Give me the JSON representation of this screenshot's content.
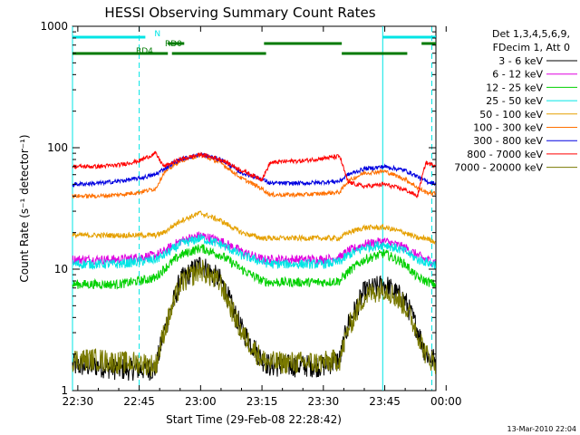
{
  "chart_data": {
    "type": "line",
    "title": "HESSI Observing Summary Count Rates",
    "xlabel": "Start Time (29-Feb-08 22:28:42)",
    "ylabel": "Count Rate (s⁻¹ detector⁻¹)",
    "yscale": "log",
    "ylim": [
      1,
      1000
    ],
    "xlim_min": [
      -1.3,
      87.5
    ],
    "x_ticks": [
      {
        "min": 0,
        "label": "22:30"
      },
      {
        "min": 15,
        "label": "22:45"
      },
      {
        "min": 30,
        "label": "23:00"
      },
      {
        "min": 45,
        "label": "23:15"
      },
      {
        "min": 60,
        "label": "23:30"
      },
      {
        "min": 75,
        "label": "23:45"
      },
      {
        "min": 90,
        "label": "00:00"
      }
    ],
    "y_ticks": [
      {
        "value": 1,
        "label": "1"
      },
      {
        "value": 10,
        "label": "10"
      },
      {
        "value": 100,
        "label": "100"
      },
      {
        "value": 1000,
        "label": "1000"
      }
    ],
    "legend": {
      "placement": "right",
      "header": [
        "Det 1,3,4,5,6,9,",
        "FDecim 1, Att 0"
      ]
    },
    "flags": [
      {
        "label": "N",
        "color": "#00e5e5",
        "segments": [
          [
            -1.3,
            16.5
          ],
          [
            74.5,
            87.5
          ]
        ]
      },
      {
        "label": "RD0",
        "color": "#007a00",
        "segments": [
          [
            22,
            26
          ],
          [
            45.5,
            64.5
          ],
          [
            84,
            87.5
          ]
        ]
      },
      {
        "label": "RD4",
        "color": "#007a00",
        "segments": [
          [
            -1.3,
            22
          ],
          [
            23,
            46
          ],
          [
            64.5,
            80.5
          ]
        ]
      }
    ],
    "vlines": [
      {
        "min": -1.3,
        "style": "solid"
      },
      {
        "min": 15,
        "style": "dashed"
      },
      {
        "min": 74.5,
        "style": "solid"
      },
      {
        "min": 86.5,
        "style": "dashed"
      }
    ],
    "minutes": [
      -1,
      5,
      10,
      15,
      19,
      21,
      25,
      30,
      35,
      40,
      45,
      47,
      50,
      55,
      60,
      64,
      66,
      70,
      75,
      80,
      83,
      85,
      87
    ],
    "series": [
      {
        "name": "3 - 6 keV",
        "color": "#000000",
        "values": [
          1.6,
          1.6,
          1.5,
          1.5,
          1.5,
          3,
          8,
          11,
          8,
          3.2,
          1.8,
          1.6,
          1.6,
          1.6,
          1.6,
          1.8,
          3.5,
          6.5,
          7.5,
          5.5,
          3.2,
          2,
          1.8
        ]
      },
      {
        "name": "6 - 12 keV",
        "color": "#e000e0",
        "values": [
          12,
          12,
          12,
          12.5,
          13,
          14,
          17,
          19,
          17,
          14,
          12,
          12,
          12,
          12,
          12,
          12.5,
          14,
          16,
          17,
          15,
          13,
          12,
          11.5
        ]
      },
      {
        "name": "12 - 25 keV",
        "color": "#00d000",
        "values": [
          7.5,
          7.5,
          7.5,
          8,
          8.5,
          10,
          13,
          15,
          13,
          10,
          8,
          7.8,
          7.8,
          7.8,
          7.8,
          8,
          9.5,
          12,
          13.5,
          11,
          8.5,
          8,
          7.5
        ]
      },
      {
        "name": "25 - 50 keV",
        "color": "#00e5e5",
        "values": [
          11,
          11,
          11,
          11.5,
          12,
          13,
          16,
          18,
          16,
          13,
          11.5,
          11,
          11,
          11,
          11,
          11.5,
          13,
          15,
          16,
          14,
          12,
          11.5,
          11
        ]
      },
      {
        "name": "50 - 100 keV",
        "color": "#e5a000",
        "values": [
          19,
          19,
          19,
          19,
          19,
          20,
          25,
          29,
          25,
          20,
          18,
          18,
          18,
          18,
          18,
          18,
          20,
          22,
          22,
          20,
          18,
          18,
          17
        ]
      },
      {
        "name": "100 - 300 keV",
        "color": "#ff7000",
        "values": [
          40,
          40,
          41,
          43,
          46,
          62,
          78,
          87,
          75,
          56,
          46,
          41,
          41,
          41,
          42,
          43,
          53,
          62,
          64,
          55,
          47,
          43,
          42
        ]
      },
      {
        "name": "300 - 800 keV",
        "color": "#0000e0",
        "values": [
          50,
          51,
          53,
          56,
          60,
          67,
          80,
          88,
          80,
          62,
          55,
          51,
          51,
          51,
          52,
          53,
          60,
          67,
          70,
          65,
          58,
          53,
          51
        ]
      },
      {
        "name": "800 - 7000 keV",
        "color": "#ff0000",
        "values": [
          70,
          70,
          72,
          78,
          90,
          70,
          80,
          88,
          80,
          65,
          55,
          75,
          77,
          78,
          82,
          85,
          52,
          48,
          50,
          45,
          40,
          75,
          72
        ]
      },
      {
        "name": "7000 - 20000 keV",
        "color": "#7a7a00",
        "values": [
          1.8,
          1.8,
          1.7,
          1.7,
          1.6,
          3,
          7.5,
          10,
          7.5,
          3,
          1.8,
          1.7,
          1.7,
          1.7,
          1.7,
          1.8,
          3.2,
          6,
          7,
          5,
          3,
          2,
          1.7
        ]
      }
    ]
  },
  "footer": {
    "date_stamp": "13-Mar-2010 22:04"
  }
}
